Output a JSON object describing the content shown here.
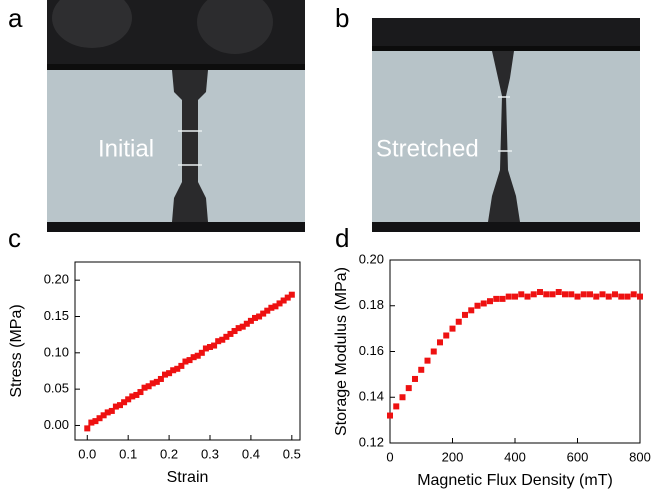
{
  "images": [
    {
      "label": "a",
      "caption": "Initial"
    },
    {
      "label": "b",
      "caption": "Stretched"
    }
  ],
  "chart_data": [
    {
      "type": "scatter",
      "label": "c",
      "xlabel": "Strain",
      "ylabel": "Stress (MPa)",
      "color": "#ee1111",
      "xlim": [
        -0.03,
        0.52
      ],
      "ylim": [
        -0.02,
        0.225
      ],
      "xticks": [
        {
          "value": 0,
          "label": "0.0"
        },
        {
          "value": 0.1,
          "label": "0.1"
        },
        {
          "value": 0.2,
          "label": "0.2"
        },
        {
          "value": 0.3,
          "label": "0.3"
        },
        {
          "value": 0.4,
          "label": "0.4"
        },
        {
          "value": 0.5,
          "label": "0.5"
        }
      ],
      "yticks": [
        {
          "value": 0,
          "label": "0.00"
        },
        {
          "value": 0.05,
          "label": "0.05"
        },
        {
          "value": 0.1,
          "label": "0.10"
        },
        {
          "value": 0.15,
          "label": "0.15"
        },
        {
          "value": 0.2,
          "label": "0.20"
        }
      ],
      "x": [
        0,
        0.01,
        0.02,
        0.03,
        0.04,
        0.05,
        0.06,
        0.07,
        0.08,
        0.09,
        0.1,
        0.11,
        0.12,
        0.13,
        0.14,
        0.15,
        0.16,
        0.17,
        0.18,
        0.19,
        0.2,
        0.21,
        0.22,
        0.23,
        0.24,
        0.25,
        0.26,
        0.27,
        0.28,
        0.29,
        0.3,
        0.31,
        0.32,
        0.33,
        0.34,
        0.35,
        0.36,
        0.37,
        0.38,
        0.39,
        0.4,
        0.41,
        0.42,
        0.43,
        0.44,
        0.45,
        0.46,
        0.47,
        0.48,
        0.49,
        0.5
      ],
      "values": [
        -0.004,
        0.004,
        0.006,
        0.01,
        0.014,
        0.018,
        0.02,
        0.026,
        0.028,
        0.032,
        0.036,
        0.04,
        0.042,
        0.046,
        0.052,
        0.054,
        0.058,
        0.06,
        0.064,
        0.07,
        0.072,
        0.076,
        0.078,
        0.082,
        0.088,
        0.09,
        0.094,
        0.096,
        0.1,
        0.106,
        0.108,
        0.11,
        0.116,
        0.118,
        0.122,
        0.126,
        0.13,
        0.134,
        0.136,
        0.14,
        0.144,
        0.148,
        0.15,
        0.154,
        0.158,
        0.162,
        0.164,
        0.168,
        0.172,
        0.176,
        0.18
      ]
    },
    {
      "type": "scatter",
      "label": "d",
      "xlabel": "Magnetic Flux Density (mT)",
      "ylabel": "Storage Modulus (MPa)",
      "color": "#ee1111",
      "xlim": [
        0,
        800
      ],
      "ylim": [
        0.12,
        0.2
      ],
      "xticks": [
        0,
        200,
        400,
        600,
        800
      ],
      "yticks": [
        0.12,
        0.14,
        0.16,
        0.18,
        {
          "value": 0.2,
          "label": "0.20"
        }
      ],
      "x": [
        0,
        20,
        40,
        60,
        80,
        100,
        120,
        140,
        160,
        180,
        200,
        220,
        240,
        260,
        280,
        300,
        320,
        340,
        360,
        380,
        400,
        420,
        440,
        460,
        480,
        500,
        520,
        540,
        560,
        580,
        600,
        620,
        640,
        660,
        680,
        700,
        720,
        740,
        760,
        780,
        800
      ],
      "values": [
        0.132,
        0.136,
        0.14,
        0.144,
        0.148,
        0.152,
        0.156,
        0.16,
        0.164,
        0.167,
        0.17,
        0.173,
        0.176,
        0.178,
        0.18,
        0.181,
        0.182,
        0.183,
        0.183,
        0.184,
        0.184,
        0.185,
        0.184,
        0.185,
        0.186,
        0.185,
        0.185,
        0.186,
        0.185,
        0.185,
        0.184,
        0.185,
        0.185,
        0.184,
        0.185,
        0.184,
        0.185,
        0.184,
        0.184,
        0.185,
        0.184
      ]
    }
  ]
}
